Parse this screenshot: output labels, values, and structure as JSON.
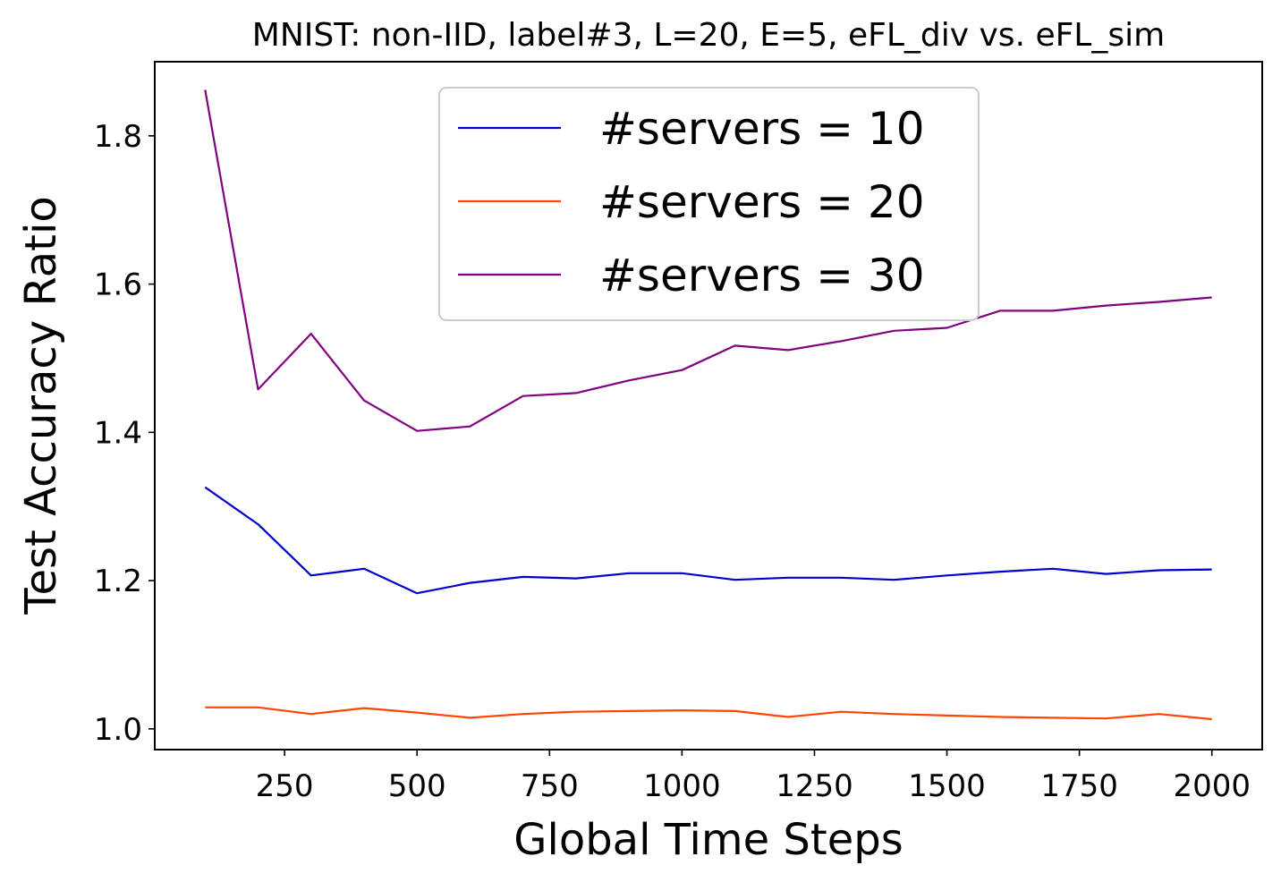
{
  "chart_data": {
    "type": "line",
    "title": "MNIST: non-IID, label#3, L=20, E=5, eFL_div vs. eFL_sim",
    "xlabel": "Global Time Steps",
    "ylabel": "Test Accuracy Ratio",
    "xlim": [
      5,
      2095
    ],
    "ylim": [
      0.972,
      1.9
    ],
    "xticks": [
      250,
      500,
      750,
      1000,
      1250,
      1500,
      1750,
      2000
    ],
    "yticks": [
      1.0,
      1.2,
      1.4,
      1.6,
      1.8
    ],
    "xtick_labels": [
      "250",
      "500",
      "750",
      "1000",
      "1250",
      "1500",
      "1750",
      "2000"
    ],
    "ytick_labels": [
      "1.0",
      "1.2",
      "1.4",
      "1.6",
      "1.8"
    ],
    "grid": false,
    "legend_position": "upper-center",
    "x": [
      100,
      200,
      300,
      400,
      500,
      600,
      700,
      800,
      900,
      1000,
      1100,
      1200,
      1300,
      1400,
      1500,
      1600,
      1700,
      1800,
      1900,
      2000
    ],
    "series": [
      {
        "name": "#servers = 10",
        "color": "#0000cd",
        "values": [
          1.326,
          1.276,
          1.207,
          1.216,
          1.183,
          1.197,
          1.205,
          1.203,
          1.21,
          1.21,
          1.201,
          1.204,
          1.204,
          1.201,
          1.207,
          1.212,
          1.216,
          1.209,
          1.214,
          1.215
        ]
      },
      {
        "name": "#servers = 20",
        "color": "#ff4500",
        "values": [
          1.029,
          1.029,
          1.02,
          1.028,
          1.022,
          1.015,
          1.02,
          1.023,
          1.024,
          1.025,
          1.024,
          1.016,
          1.023,
          1.02,
          1.018,
          1.016,
          1.015,
          1.014,
          1.02,
          1.013
        ]
      },
      {
        "name": "#servers = 30",
        "color": "#800080",
        "values": [
          1.862,
          1.458,
          1.533,
          1.443,
          1.402,
          1.408,
          1.449,
          1.453,
          1.47,
          1.484,
          1.517,
          1.511,
          1.523,
          1.537,
          1.541,
          1.564,
          1.564,
          1.571,
          1.576,
          1.582
        ]
      }
    ]
  }
}
